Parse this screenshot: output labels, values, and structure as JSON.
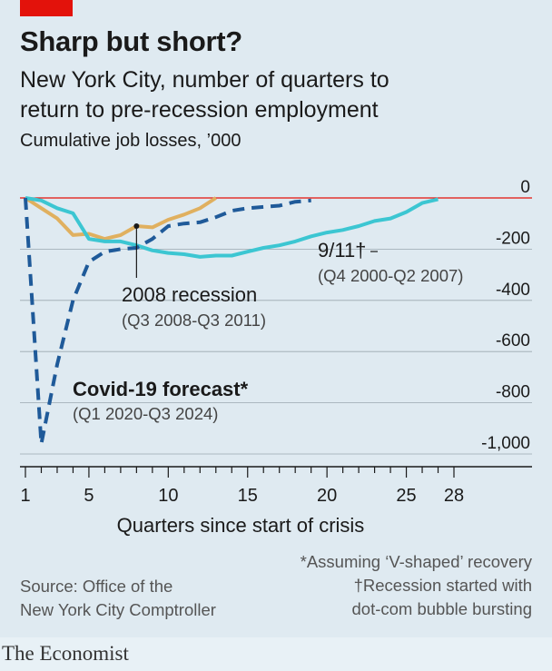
{
  "header": {
    "title": "Sharp but short?",
    "subtitle_line1": "New York City, number of quarters to",
    "subtitle_line2": "return to pre-recession employment",
    "units": "Cumulative job losses, ’000"
  },
  "footer": {
    "source_line1": "Source: Office of the",
    "source_line2": "New York City Comptroller",
    "note_line1": "*Assuming ‘V-shaped’ recovery",
    "note_line2": "†Recession started with",
    "note_line3": "dot-com bubble bursting",
    "brand": "The Economist"
  },
  "colors": {
    "brand_red": "#e3120b",
    "covid": "#1f5a99",
    "recession_2008": "#e0b05f",
    "nine_eleven": "#3cc6d2",
    "zero_line": "#e3120b",
    "grid": "#9aa7b0"
  },
  "chart_data": {
    "type": "line",
    "xlabel": "Quarters since start of crisis",
    "ylabel": "",
    "xlim": [
      1,
      28
    ],
    "ylim": [
      -1000,
      0
    ],
    "x_ticks": [
      "1",
      "5",
      "10",
      "15",
      "20",
      "25",
      "28"
    ],
    "y_ticks": [
      "0",
      "-200",
      "-400",
      "-600",
      "-800",
      "-1,000"
    ],
    "y_tick_values": [
      0,
      -200,
      -400,
      -600,
      -800,
      -1000
    ],
    "series": [
      {
        "name": "Covid-19 forecast*",
        "sublabel": "(Q1 2020-Q3 2024)",
        "style": "dashed",
        "x": [
          1,
          2,
          3,
          4,
          5,
          6,
          7,
          8,
          9,
          10,
          11,
          12,
          13,
          14,
          15,
          16,
          17,
          18,
          19
        ],
        "y": [
          0,
          -960,
          -650,
          -400,
          -250,
          -210,
          -200,
          -195,
          -160,
          -110,
          -100,
          -95,
          -75,
          -50,
          -40,
          -35,
          -30,
          -15,
          -10
        ]
      },
      {
        "name": "2008 recession",
        "sublabel": "(Q3 2008-Q3 2011)",
        "style": "solid",
        "x": [
          1,
          2,
          3,
          4,
          5,
          6,
          7,
          8,
          9,
          10,
          11,
          12,
          13
        ],
        "y": [
          0,
          -40,
          -80,
          -145,
          -140,
          -160,
          -145,
          -110,
          -115,
          -85,
          -65,
          -40,
          0
        ]
      },
      {
        "name": "9/11†",
        "sublabel": "(Q4 2000-Q2 2007)",
        "style": "solid",
        "x": [
          1,
          2,
          3,
          4,
          5,
          6,
          7,
          8,
          9,
          10,
          11,
          12,
          13,
          14,
          15,
          16,
          17,
          18,
          19,
          20,
          21,
          22,
          23,
          24,
          25,
          26,
          27
        ],
        "y": [
          0,
          -10,
          -40,
          -60,
          -160,
          -170,
          -170,
          -185,
          -205,
          -215,
          -220,
          -230,
          -225,
          -225,
          -210,
          -195,
          -185,
          -170,
          -150,
          -135,
          -125,
          -110,
          -90,
          -80,
          -55,
          -20,
          -5
        ]
      }
    ]
  }
}
